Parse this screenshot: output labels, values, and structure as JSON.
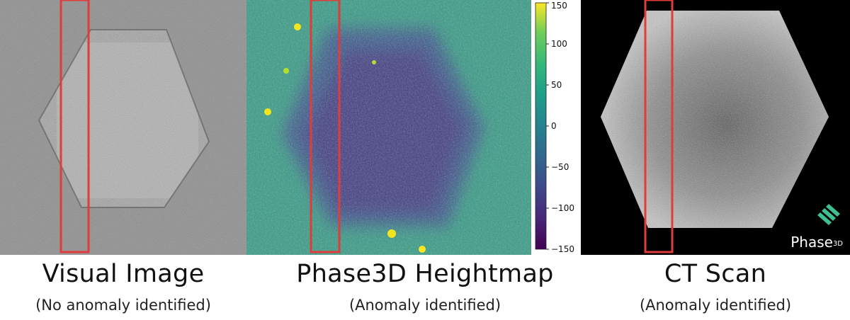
{
  "panels": [
    {
      "title": "Visual Image",
      "subtitle": "(No anomaly identified)"
    },
    {
      "title": "Phase3D Heightmap",
      "subtitle": "(Anomaly identified)"
    },
    {
      "title": "CT Scan",
      "subtitle": "(Anomaly identified)"
    }
  ],
  "colorbar": {
    "ticks": [
      "150",
      "100",
      "50",
      "0",
      "−50",
      "−100",
      "−150"
    ],
    "colormap": "viridis"
  },
  "logo": {
    "text": "Phase",
    "superscript": "3D",
    "color": "#3fbf8f"
  },
  "highlight_color": "#e23b3b"
}
